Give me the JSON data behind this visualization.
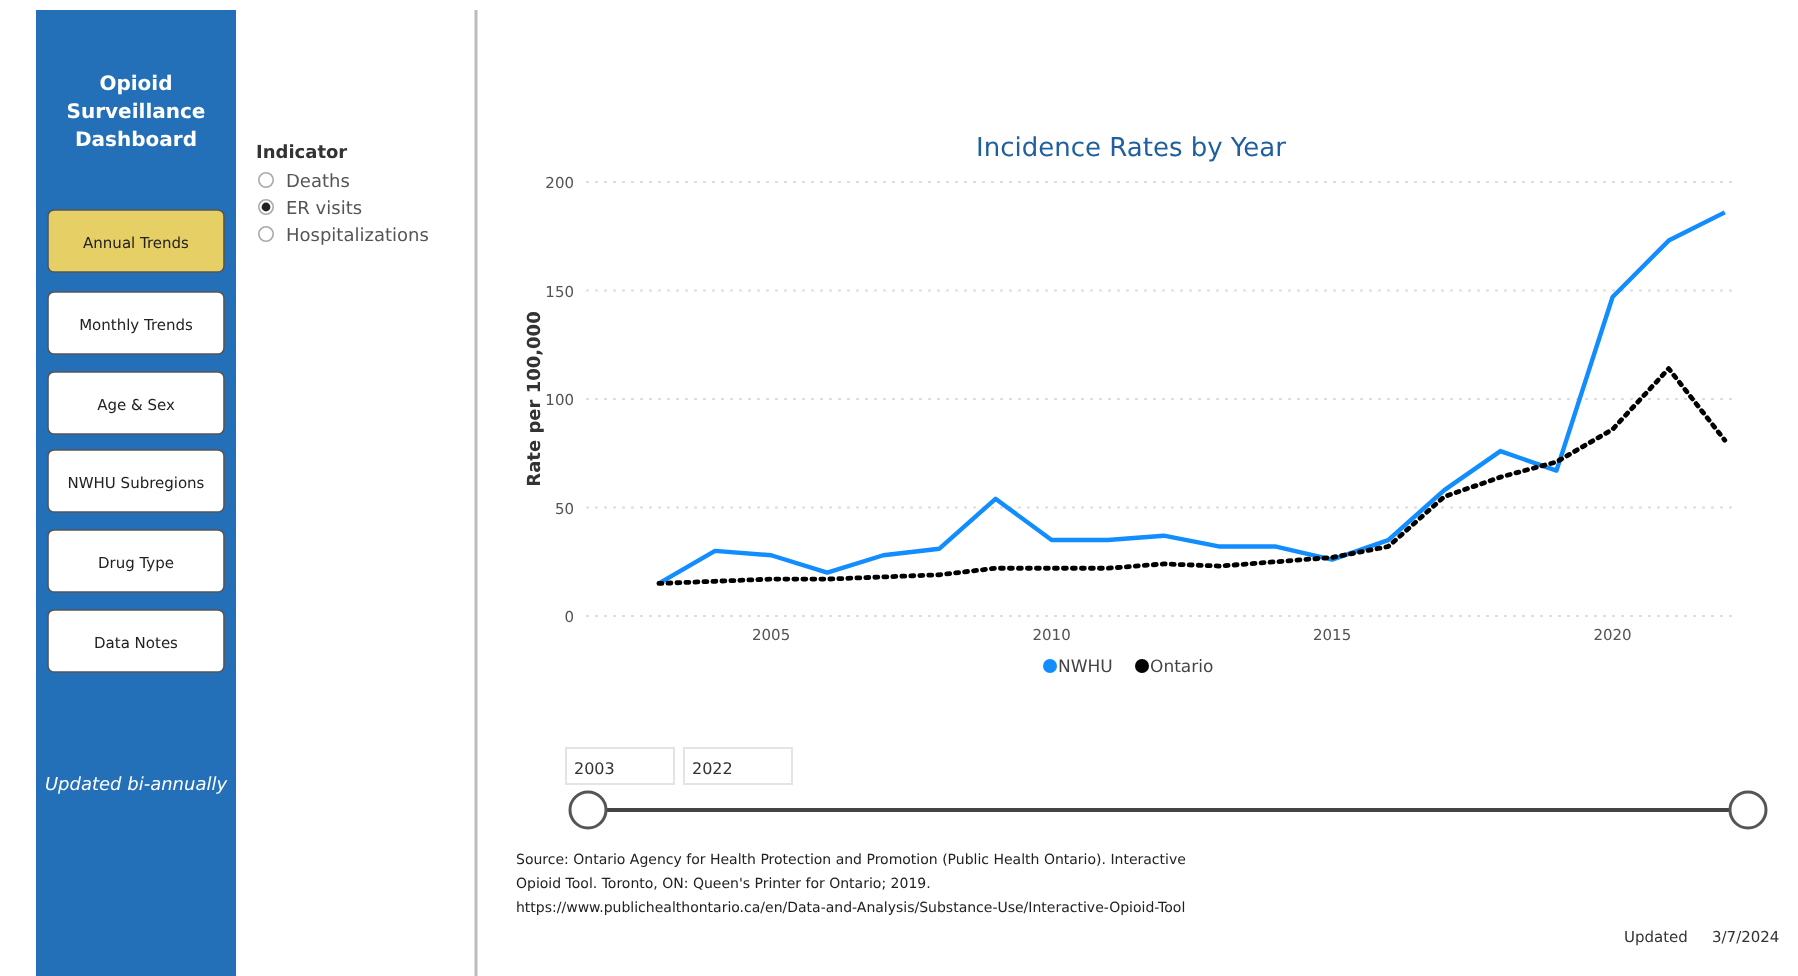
{
  "chart_data": [
    {
      "type": "other",
      "title": "Opioid Surveillance Dashboard",
      "annotations": [
        "Annual Trends",
        "Monthly Trends",
        "Age & Sex",
        "NWHU Subregions",
        "Drug Type",
        "Data Notes",
        "Updated bi-annually",
        "Indicator",
        "Deaths",
        "ER visits",
        "Hospitalizations",
        "2003",
        "2022",
        "Updated",
        "3/7/2024"
      ]
    },
    {
      "type": "line",
      "title": "Incidence Rates by Year",
      "ylabel": "Rate per 100,000",
      "x": [
        2003,
        2004,
        2005,
        2006,
        2007,
        2008,
        2009,
        2010,
        2011,
        2012,
        2013,
        2014,
        2015,
        2016,
        2017,
        2018,
        2019,
        2020,
        2021,
        2022
      ],
      "series": [
        {
          "name": "NWHU",
          "color": "#118dff",
          "values": [
            15,
            30,
            28,
            20,
            28,
            31,
            54,
            35,
            35,
            37,
            32,
            32,
            26,
            35,
            58,
            76,
            67,
            147,
            173,
            186
          ]
        },
        {
          "name": "Ontario",
          "color": "#000000",
          "line_style": "dotted",
          "values": [
            15,
            16,
            17,
            17,
            18,
            19,
            22,
            22,
            22,
            24,
            23,
            25,
            27,
            32,
            55,
            64,
            71,
            86,
            114,
            81
          ]
        }
      ],
      "xlim": [
        2001.7,
        2022.2
      ],
      "ylim": [
        0,
        200
      ],
      "xticks": [
        2005,
        2010,
        2015,
        2020
      ],
      "yticks": [
        0,
        50,
        100,
        150,
        200
      ],
      "grid": "y",
      "legend": "bottom",
      "marker": "none",
      "line_style": "solid",
      "annotations": [
        "Source: Ontario Agency for Health Protection and Promotion (Public Health Ontario). Interactive Opioid Tool. Toronto, ON: Queen's Printer for Ontario; 2019. https://www.publichealthontario.ca/en/Data-and-Analysis/Substance-Use/Interactive-Opioid-Tool"
      ]
    }
  ]
}
